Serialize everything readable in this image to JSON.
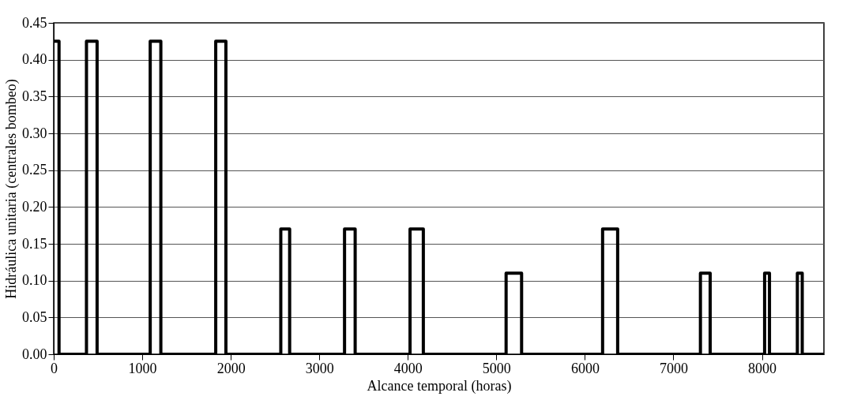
{
  "chart_data": {
    "type": "line",
    "xlabel": "Alcance temporal (horas)",
    "ylabel": "Hidráulica unitaria (centrales bombeo)",
    "x": [
      0,
      60,
      60,
      370,
      370,
      490,
      490,
      1090,
      1090,
      1210,
      1210,
      1830,
      1830,
      1945,
      1945,
      2565,
      2565,
      2665,
      2665,
      3285,
      3285,
      3405,
      3405,
      4025,
      4025,
      4175,
      4175,
      5110,
      5110,
      5285,
      5285,
      6200,
      6200,
      6370,
      6370,
      7305,
      7305,
      7415,
      7415,
      8030,
      8030,
      8085,
      8085,
      8400,
      8400,
      8455,
      8455,
      8700
    ],
    "series": [
      {
        "color": "#000000",
        "values": [
          0.425,
          0.425,
          0,
          0,
          0.425,
          0.425,
          0,
          0,
          0.425,
          0.425,
          0,
          0,
          0.425,
          0.425,
          0,
          0,
          0.17,
          0.17,
          0,
          0,
          0.17,
          0.17,
          0,
          0,
          0.17,
          0.17,
          0,
          0,
          0.11,
          0.11,
          0,
          0,
          0.17,
          0.17,
          0,
          0,
          0.11,
          0.11,
          0,
          0,
          0.11,
          0.11,
          0,
          0,
          0.11,
          0.11,
          0,
          0
        ]
      }
    ],
    "xlim": [
      0,
      8700
    ],
    "xticks": [
      0,
      1000,
      2000,
      3000,
      4000,
      5000,
      6000,
      7000,
      8000
    ],
    "ylim": [
      0,
      0.45
    ],
    "yticks": [
      {
        "value": 0,
        "label": "0.00"
      },
      0.05,
      {
        "value": 0.1,
        "label": "0.10"
      },
      0.15,
      {
        "value": 0.2,
        "label": "0.20"
      },
      0.25,
      {
        "value": 0.3,
        "label": "0.30"
      },
      0.35,
      {
        "value": 0.4,
        "label": "0.40"
      },
      0.45
    ],
    "grid": "y",
    "marker": "none",
    "line_style": "solid"
  }
}
